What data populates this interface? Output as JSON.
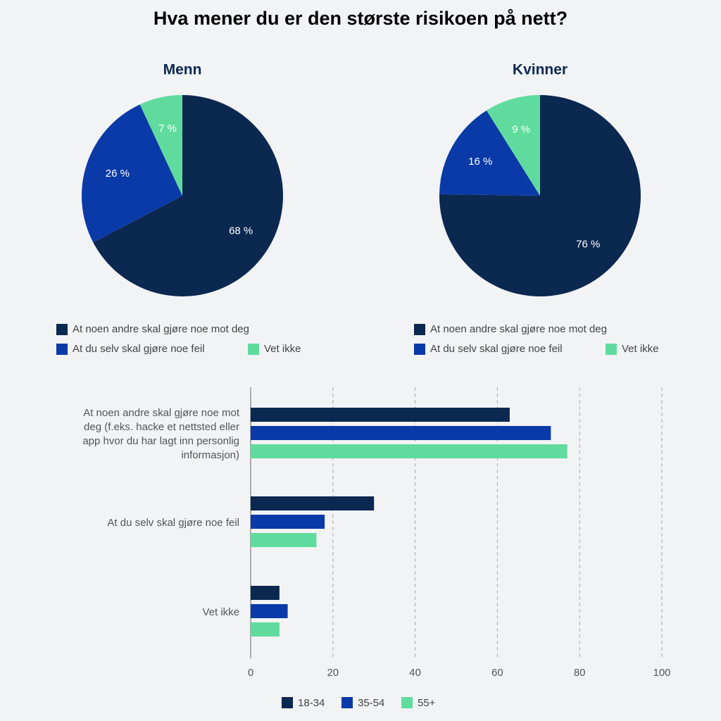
{
  "title": "Hva mener du er den største risikoen på nett?",
  "chart_data": [
    {
      "type": "pie",
      "title": "Menn",
      "categories": [
        "At noen andre skal gjøre noe mot deg",
        "At du selv skal gjøre noe feil",
        "Vet ikke"
      ],
      "values": [
        68,
        26,
        7
      ],
      "value_labels": [
        "68 %",
        "26 %",
        "7 %"
      ],
      "colors": [
        "#0b2850",
        "#0a3aa8",
        "#5fdc9d"
      ]
    },
    {
      "type": "pie",
      "title": "Kvinner",
      "categories": [
        "At noen andre skal gjøre noe mot deg",
        "At du selv skal gjøre noe feil",
        "Vet ikke"
      ],
      "values": [
        76,
        16,
        9
      ],
      "value_labels": [
        "76 %",
        "16 %",
        "9 %"
      ],
      "colors": [
        "#0b2850",
        "#0a3aa8",
        "#5fdc9d"
      ]
    },
    {
      "type": "bar",
      "orientation": "horizontal",
      "categories": [
        "At noen andre skal gjøre noe mot deg (f.eks. hacke et nettsted eller app hvor du har lagt inn personlig informasjon)",
        "At du selv skal gjøre noe feil",
        "Vet ikke"
      ],
      "series": [
        {
          "name": "18-34",
          "color": "#0b2850",
          "values": [
            63,
            30,
            7
          ]
        },
        {
          "name": "35-54",
          "color": "#0a3aa8",
          "values": [
            73,
            18,
            9
          ]
        },
        {
          "name": "55+",
          "color": "#5fdc9d",
          "values": [
            77,
            16,
            7
          ]
        }
      ],
      "xlim": [
        0,
        100
      ],
      "xticks": [
        0,
        20,
        40,
        60,
        80,
        100
      ],
      "grid": true
    }
  ]
}
